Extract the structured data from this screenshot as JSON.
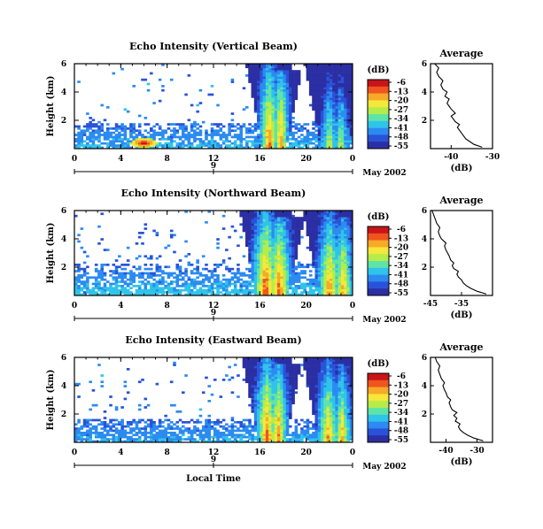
{
  "chart_data": [
    {
      "type": "heatmap",
      "title": "Echo Intensity (Vertical Beam)",
      "ylabel": "Height (km)",
      "xlabel": "",
      "xlim": [
        0,
        24
      ],
      "ylim": [
        0,
        6
      ],
      "xticks": [
        "0",
        "4",
        "8",
        "12",
        "16",
        "20",
        "0"
      ],
      "yticks": [
        "2",
        "4",
        "6"
      ],
      "date_markers": [
        "9"
      ],
      "date_label": "May 2002",
      "colorbar": {
        "label": "(dB)",
        "ticks": [
          "-6",
          "-13",
          "-20",
          "-27",
          "-34",
          "-41",
          "-48",
          "-55"
        ]
      },
      "features": {
        "low_layer_top_km": 1.8,
        "scatter_density": 0.045,
        "columns": [
          {
            "hour": 16.8,
            "width": 0.35,
            "top_km": 6.0,
            "peak_db": -8
          },
          {
            "hour": 17.8,
            "width": 0.3,
            "top_km": 5.6,
            "peak_db": -10
          },
          {
            "hour": 22.0,
            "width": 0.45,
            "top_km": 6.0,
            "peak_db": -20
          },
          {
            "hour": 23.0,
            "width": 0.5,
            "top_km": 5.6,
            "peak_db": -22
          }
        ],
        "hotspot": {
          "hour": 6.0,
          "height_km": 0.4,
          "peak_db": -6
        }
      }
    },
    {
      "type": "line",
      "title": "Average",
      "xlabel": "(dB)",
      "xlim": [
        -45,
        -30
      ],
      "ylim": [
        0,
        6
      ],
      "xticks": [
        "-40",
        "-30"
      ],
      "yticks": [
        "2",
        "4",
        "6"
      ],
      "series": [
        {
          "x": [
            -32.5,
            -34.5,
            -35.5,
            -36.5,
            -37.0,
            -37.5,
            -38.0,
            -38.5,
            -38.0,
            -39.0,
            -39.5,
            -40.0,
            -39.0,
            -40.0,
            -40.5,
            -41.0,
            -40.5,
            -41.5,
            -41.0,
            -42.0,
            -42.5,
            -42.0,
            -43.0,
            -43.5,
            -43.0,
            -44.0
          ],
          "y": [
            0.1,
            0.3,
            0.5,
            0.7,
            0.9,
            1.1,
            1.3,
            1.5,
            1.7,
            1.9,
            2.1,
            2.3,
            2.5,
            2.8,
            3.0,
            3.2,
            3.5,
            3.7,
            4.0,
            4.2,
            4.5,
            4.8,
            5.1,
            5.4,
            5.7,
            6.0
          ]
        }
      ]
    },
    {
      "type": "heatmap",
      "title": "Echo Intensity (Northward Beam)",
      "ylabel": "Height (km)",
      "xlabel": "",
      "xlim": [
        0,
        24
      ],
      "ylim": [
        0,
        6
      ],
      "xticks": [
        "0",
        "4",
        "8",
        "12",
        "16",
        "20",
        "0"
      ],
      "yticks": [
        "2",
        "4",
        "6"
      ],
      "date_markers": [
        "9"
      ],
      "date_label": "May 2002",
      "colorbar": {
        "label": "(dB)",
        "ticks": [
          "-6",
          "-13",
          "-20",
          "-27",
          "-34",
          "-41",
          "-48",
          "-55"
        ]
      },
      "features": {
        "low_layer_top_km": 2.2,
        "scatter_density": 0.08,
        "columns": [
          {
            "hour": 16.5,
            "width": 0.5,
            "top_km": 6.0,
            "peak_db": -6
          },
          {
            "hour": 17.7,
            "width": 0.5,
            "top_km": 5.6,
            "peak_db": -8
          },
          {
            "hour": 22.0,
            "width": 0.55,
            "top_km": 6.0,
            "peak_db": -10
          },
          {
            "hour": 23.2,
            "width": 0.45,
            "top_km": 5.5,
            "peak_db": -12
          }
        ],
        "hotspot": null
      }
    },
    {
      "type": "line",
      "title": "Average",
      "xlabel": "(dB)",
      "xlim": [
        -45,
        -25
      ],
      "ylim": [
        0,
        6
      ],
      "xticks": [
        "-45",
        "-35"
      ],
      "yticks": [
        "2",
        "4",
        "6"
      ],
      "series": [
        {
          "x": [
            -27.0,
            -30.0,
            -32.0,
            -33.5,
            -34.5,
            -35.0,
            -36.0,
            -36.5,
            -36.0,
            -37.5,
            -38.0,
            -37.5,
            -38.5,
            -39.0,
            -39.5,
            -40.0,
            -40.5,
            -40.0,
            -41.5,
            -42.0,
            -42.5,
            -42.0,
            -43.0,
            -43.5,
            -44.0,
            -44.5
          ],
          "y": [
            0.1,
            0.3,
            0.5,
            0.7,
            0.9,
            1.1,
            1.3,
            1.5,
            1.7,
            1.9,
            2.1,
            2.3,
            2.5,
            2.8,
            3.0,
            3.2,
            3.5,
            3.7,
            4.0,
            4.2,
            4.5,
            4.8,
            5.1,
            5.4,
            5.7,
            6.0
          ]
        }
      ]
    },
    {
      "type": "heatmap",
      "title": "Echo Intensity (Eastward Beam)",
      "ylabel": "Height (km)",
      "xlabel": "Local Time",
      "xlim": [
        0,
        24
      ],
      "ylim": [
        0,
        6
      ],
      "xticks": [
        "0",
        "4",
        "8",
        "12",
        "16",
        "20",
        "0"
      ],
      "yticks": [
        "2",
        "4",
        "6"
      ],
      "date_markers": [
        "9"
      ],
      "date_label": "May 2002",
      "colorbar": {
        "label": "(dB)",
        "ticks": [
          "-6",
          "-13",
          "-20",
          "-27",
          "-34",
          "-41",
          "-48",
          "-55"
        ]
      },
      "features": {
        "low_layer_top_km": 1.6,
        "scatter_density": 0.05,
        "columns": [
          {
            "hour": 16.6,
            "width": 0.45,
            "top_km": 6.0,
            "peak_db": -8
          },
          {
            "hour": 17.6,
            "width": 0.4,
            "top_km": 5.6,
            "peak_db": -10
          },
          {
            "hour": 21.9,
            "width": 0.5,
            "top_km": 6.0,
            "peak_db": -12
          },
          {
            "hour": 23.1,
            "width": 0.45,
            "top_km": 5.6,
            "peak_db": -14
          }
        ],
        "hotspot": null
      }
    },
    {
      "type": "line",
      "title": "Average",
      "xlabel": "(dB)",
      "xlim": [
        -45,
        -25
      ],
      "ylim": [
        0,
        6
      ],
      "xticks": [
        "-40",
        "-30"
      ],
      "yticks": [
        "2",
        "4",
        "6"
      ],
      "series": [
        {
          "x": [
            -28.0,
            -31.0,
            -33.0,
            -34.5,
            -35.5,
            -36.0,
            -35.5,
            -37.0,
            -36.5,
            -37.5,
            -36.5,
            -38.0,
            -38.5,
            -39.0,
            -38.5,
            -39.5,
            -40.0,
            -40.5,
            -41.0,
            -40.5,
            -41.5,
            -42.0,
            -42.5,
            -42.0,
            -43.0,
            -43.5
          ],
          "y": [
            0.1,
            0.3,
            0.5,
            0.7,
            0.9,
            1.1,
            1.3,
            1.5,
            1.7,
            1.9,
            2.1,
            2.3,
            2.5,
            2.8,
            3.0,
            3.2,
            3.5,
            3.7,
            4.0,
            4.2,
            4.5,
            4.8,
            5.1,
            5.4,
            5.7,
            6.0
          ]
        }
      ]
    }
  ]
}
